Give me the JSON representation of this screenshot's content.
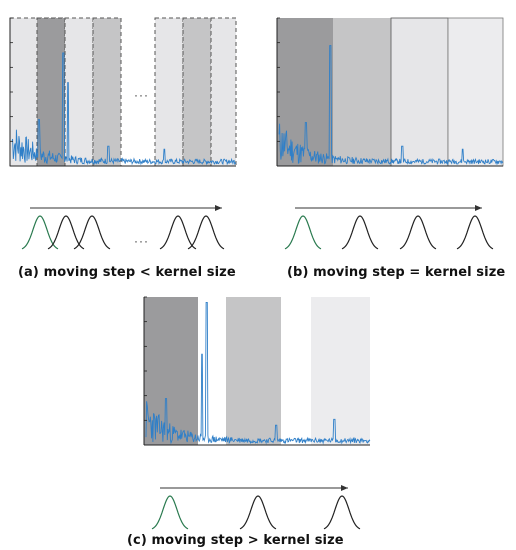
{
  "colors": {
    "signal": "#2f7fc8",
    "kernel_first": "#2a7a4f",
    "kernel_other": "#222222",
    "window_dark": "#9b9b9d",
    "window_mid": "#c5c5c6",
    "window_light": "#e6e6e8",
    "window_lightest": "#ececee"
  },
  "panels": [
    {
      "id": "a",
      "caption": "(a) moving step < kernel size",
      "gap_marker": "···",
      "curve_marker": "···",
      "windows": [
        "light",
        "dark",
        "light",
        "mid",
        "light"
      ],
      "dashed_windows": true
    },
    {
      "id": "b",
      "caption": "(b) moving step = kernel size",
      "windows": [
        "dark",
        "mid",
        "light",
        "lightest"
      ],
      "dashed_windows": false
    },
    {
      "id": "c",
      "caption": "(c) moving step > kernel size",
      "windows": [
        "dark",
        "mid",
        "lightest"
      ],
      "dashed_windows": false
    }
  ]
}
